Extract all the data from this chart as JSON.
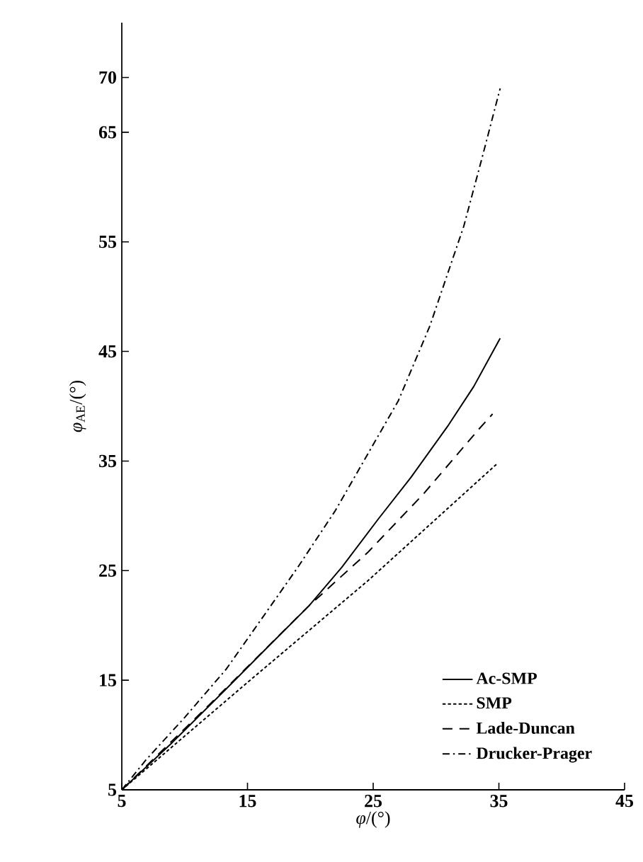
{
  "chart_data": {
    "type": "line",
    "xlabel": "*φ*/(°)",
    "ylabel": "*φ*$_{AE}$/(°)",
    "xlim": [
      5,
      45
    ],
    "ylim": [
      5,
      75
    ],
    "xticks": [
      5,
      15,
      25,
      35,
      45
    ],
    "yticks": [
      5,
      15,
      25,
      35,
      45,
      55,
      65,
      70
    ],
    "legend": "bottom right",
    "marker": "none",
    "series": [
      {
        "name": "Ac-SMP",
        "color": "#000000",
        "line_style": "solid",
        "x": [
          5,
          9,
          13.3,
          16.5,
          19.9,
          22.5,
          25.4,
          28,
          31,
          33,
          35.1
        ],
        "values": [
          5,
          9.3,
          14.2,
          17.9,
          21.8,
          25.3,
          29.7,
          33.5,
          38.3,
          41.8,
          46.2
        ]
      },
      {
        "name": "SMP",
        "color": "#000000",
        "line_style": "dotted",
        "x": [
          5,
          15,
          24.6,
          34.9
        ],
        "values": [
          5,
          14.8,
          24.1,
          34.8
        ]
      },
      {
        "name": "Lade-Duncan",
        "color": "#000000",
        "line_style": "dashed",
        "x": [
          5,
          12,
          19.9,
          24.6,
          29,
          33.4,
          34.5
        ],
        "values": [
          5,
          12.8,
          21.8,
          26.7,
          32,
          37.9,
          39.3
        ]
      },
      {
        "name": "Drucker-Prager",
        "color": "#000000",
        "line_style": "dashdot",
        "x": [
          5,
          6.9,
          10,
          13.3,
          16,
          19,
          22,
          24.6,
          27,
          29.5,
          32.2,
          33.6,
          35.1
        ],
        "values": [
          5,
          7.7,
          11.6,
          16,
          20.4,
          25.3,
          30.5,
          35.7,
          40.5,
          47.3,
          56.4,
          62.4,
          69
        ]
      }
    ]
  }
}
